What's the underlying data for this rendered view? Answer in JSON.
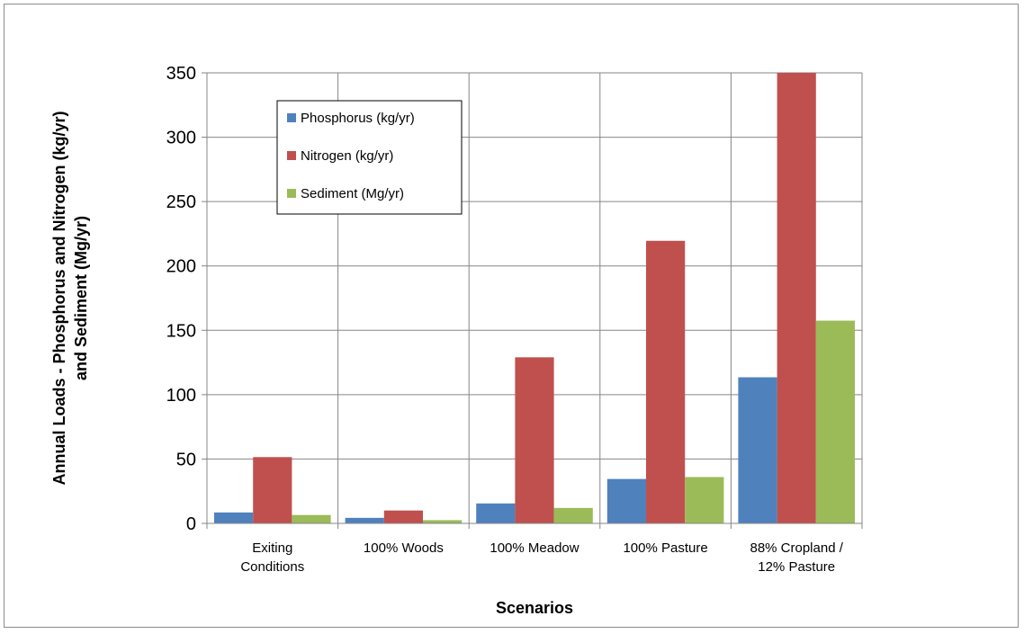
{
  "chart_data": {
    "type": "bar",
    "categories": [
      [
        "Exiting",
        "Conditions"
      ],
      [
        "100% Woods"
      ],
      [
        "100% Meadow"
      ],
      [
        "100% Pasture"
      ],
      [
        "88% Cropland /",
        "12% Pasture"
      ]
    ],
    "series": [
      {
        "name": "Phosphorus (kg/yr)",
        "color": "#4f81bd",
        "values": [
          8.5,
          4.3,
          15.5,
          34.5,
          113.5
        ]
      },
      {
        "name": "Nitrogen (kg/yr)",
        "color": "#c0504d",
        "values": [
          51.5,
          10,
          129,
          219.5,
          350
        ]
      },
      {
        "name": "Sediment (Mg/yr)",
        "color": "#9bbb59",
        "values": [
          6.5,
          2.5,
          12,
          36,
          157.5
        ]
      }
    ],
    "title": "",
    "xlabel": "Scenarios",
    "ylabel": [
      "Annual Loads - Phosphorus and Nitrogen (kg/yr)",
      "and Sediment (Mg/yr)"
    ],
    "ylim": [
      0,
      350
    ],
    "yticks": [
      0,
      50,
      100,
      150,
      200,
      250,
      300,
      350
    ],
    "grid": true,
    "legend_position": "top-left"
  }
}
